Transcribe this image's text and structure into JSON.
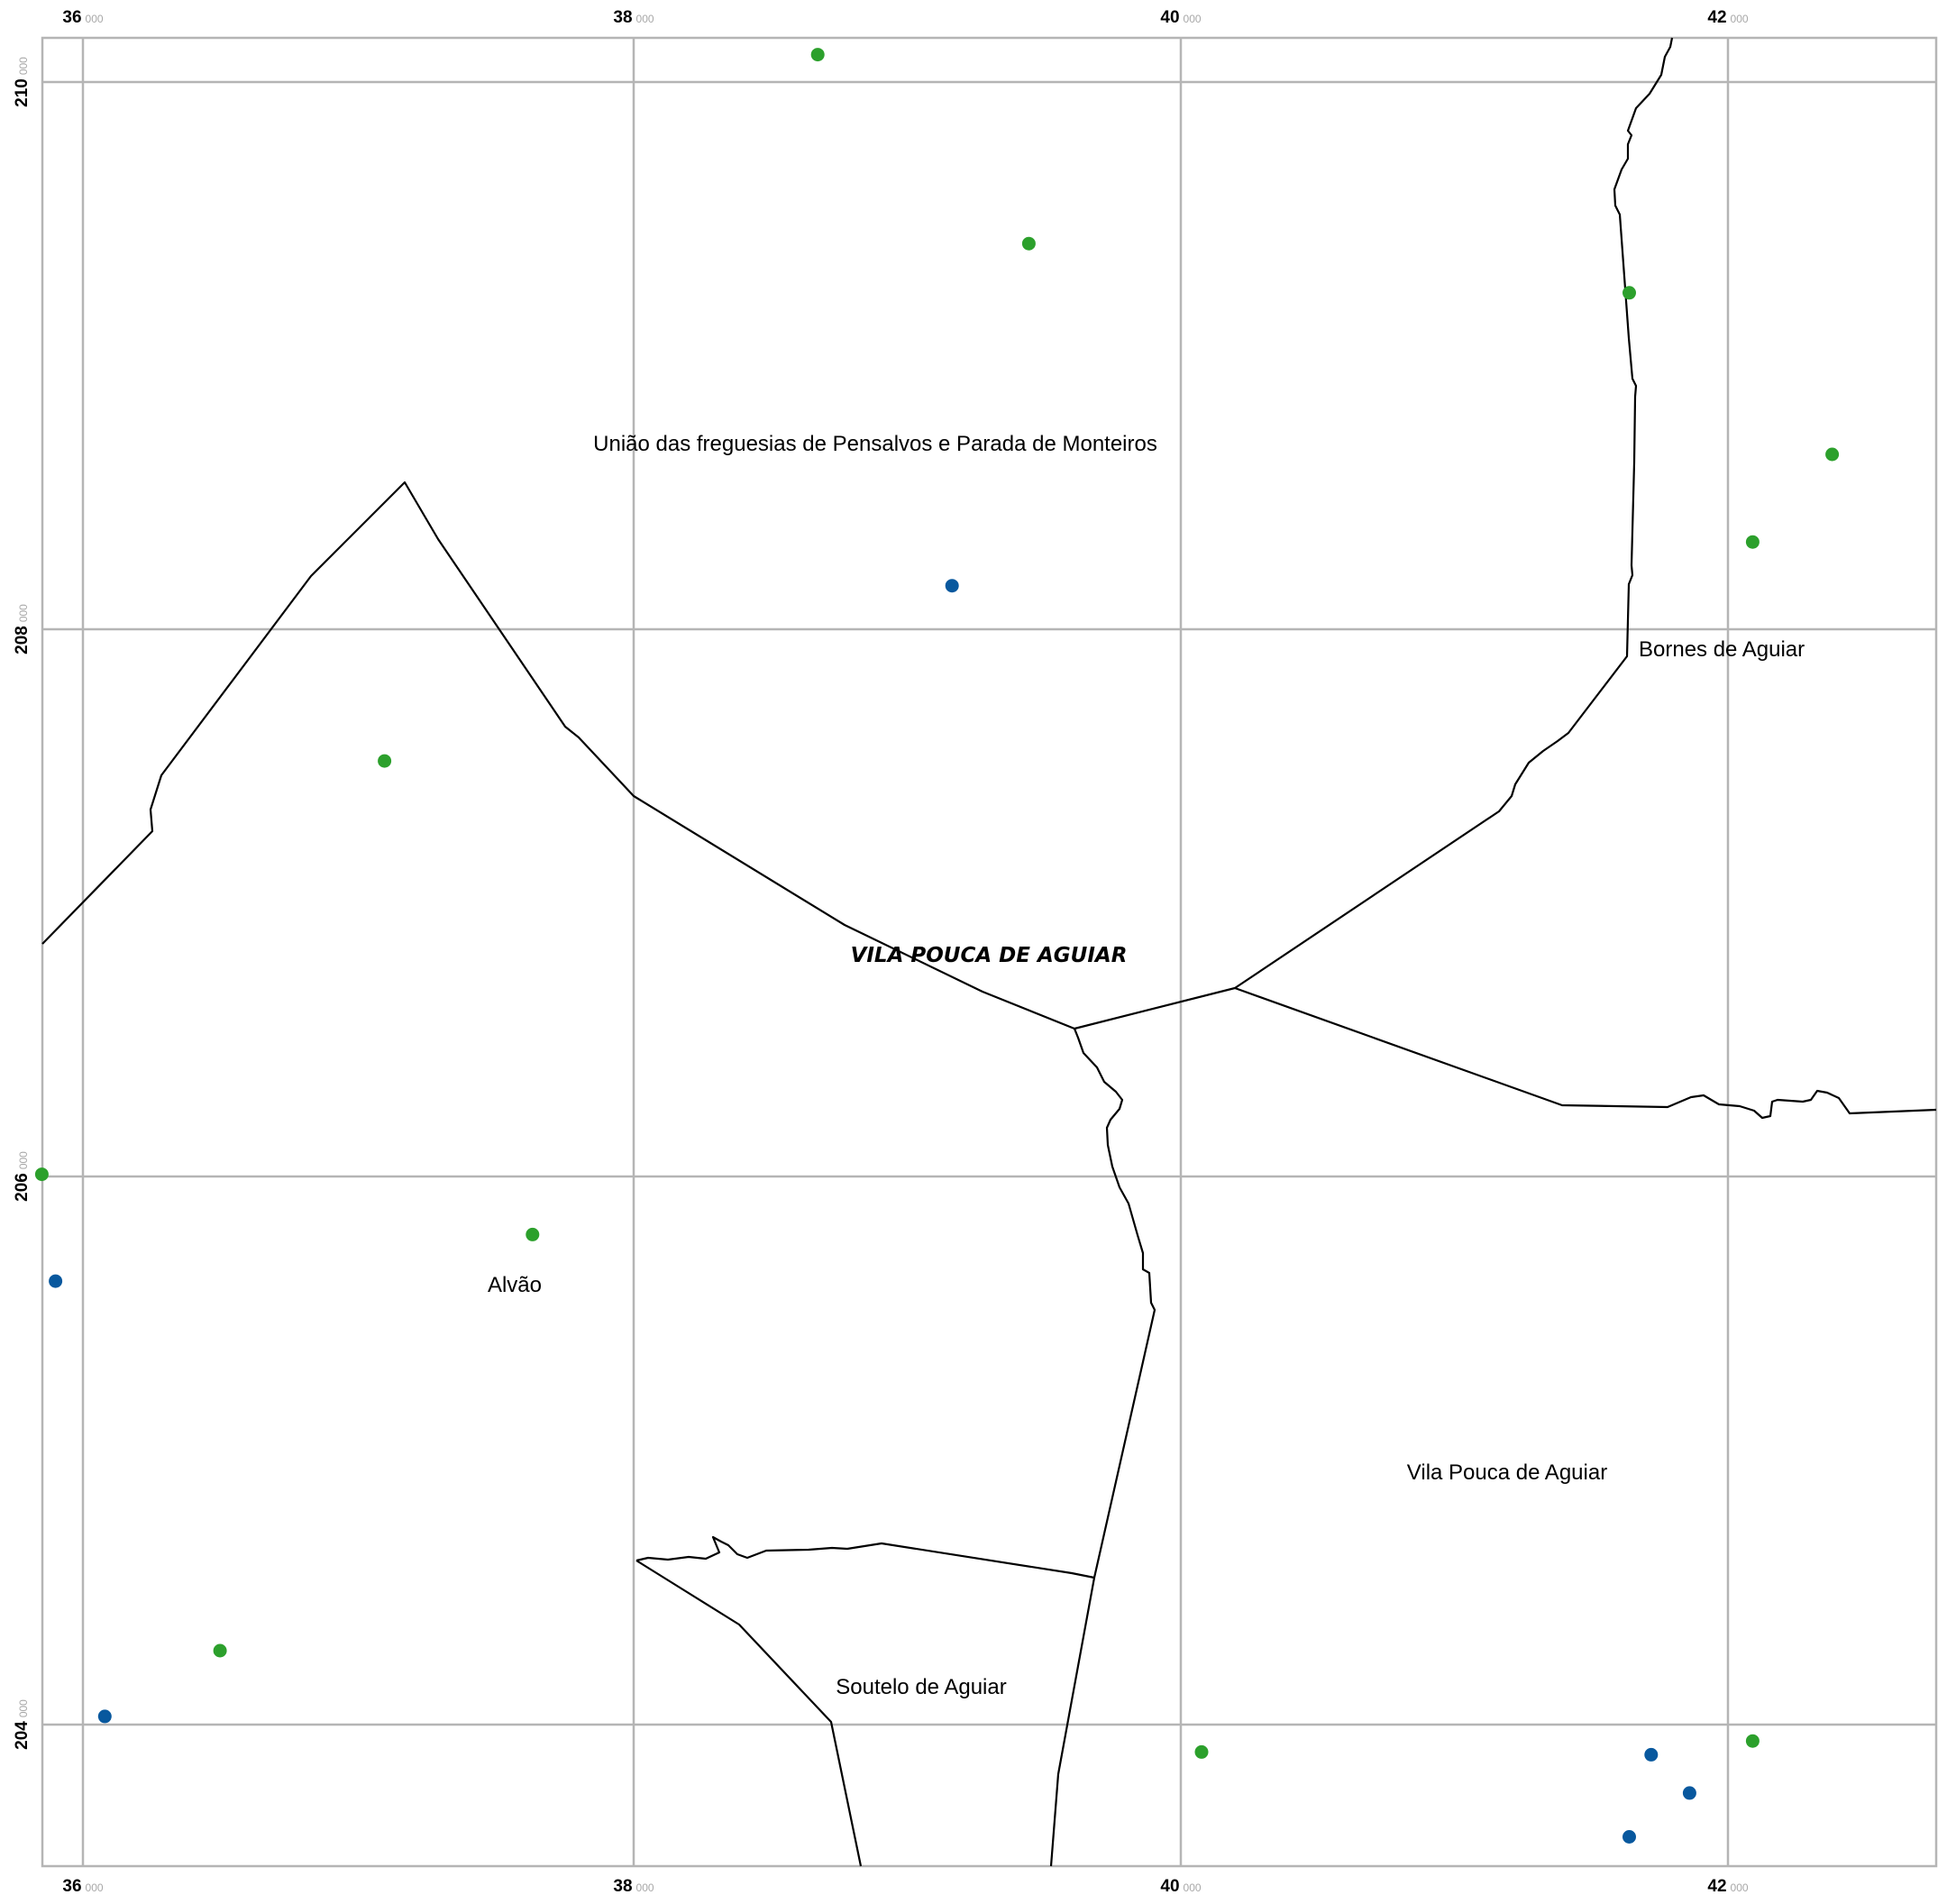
{
  "map": {
    "axis": {
      "minor_suffix": "000",
      "x_ticks": [
        {
          "major": "36",
          "value": 36000
        },
        {
          "major": "38",
          "value": 38000
        },
        {
          "major": "40",
          "value": 40000
        },
        {
          "major": "42",
          "value": 42000
        }
      ],
      "y_ticks": [
        {
          "major": "210",
          "value": 210000
        },
        {
          "major": "208",
          "value": 208000
        },
        {
          "major": "206",
          "value": 206000
        },
        {
          "major": "204",
          "value": 204000
        }
      ]
    },
    "municipality_label": "VILA POUCA DE AGUIAR",
    "parishes": [
      {
        "name": "União das freguesias de Pensalvos e Parada de Monteiros"
      },
      {
        "name": "Bornes de Aguiar"
      },
      {
        "name": "Alvão"
      },
      {
        "name": "Vila Pouca de Aguiar"
      },
      {
        "name": "Soutelo de Aguiar"
      }
    ],
    "point_colors": {
      "green": "#2ca02c",
      "blue": "#08589e"
    },
    "points": [
      {
        "x": 38680,
        "y": 210100,
        "color": "green"
      },
      {
        "x": 39450,
        "y": 209410,
        "color": "green"
      },
      {
        "x": 41640,
        "y": 209230,
        "color": "green"
      },
      {
        "x": 42380,
        "y": 208640,
        "color": "green"
      },
      {
        "x": 42090,
        "y": 208320,
        "color": "green"
      },
      {
        "x": 39170,
        "y": 208160,
        "color": "blue"
      },
      {
        "x": 37100,
        "y": 207520,
        "color": "green"
      },
      {
        "x": 35850,
        "y": 206010,
        "color": "green"
      },
      {
        "x": 37640,
        "y": 205790,
        "color": "green"
      },
      {
        "x": 35900,
        "y": 205620,
        "color": "blue"
      },
      {
        "x": 36500,
        "y": 204270,
        "color": "green"
      },
      {
        "x": 36080,
        "y": 204030,
        "color": "blue"
      },
      {
        "x": 40080,
        "y": 203900,
        "color": "green"
      },
      {
        "x": 42090,
        "y": 203940,
        "color": "green"
      },
      {
        "x": 41720,
        "y": 203890,
        "color": "blue"
      },
      {
        "x": 41860,
        "y": 203750,
        "color": "blue"
      },
      {
        "x": 41640,
        "y": 203590,
        "color": "blue"
      }
    ]
  }
}
